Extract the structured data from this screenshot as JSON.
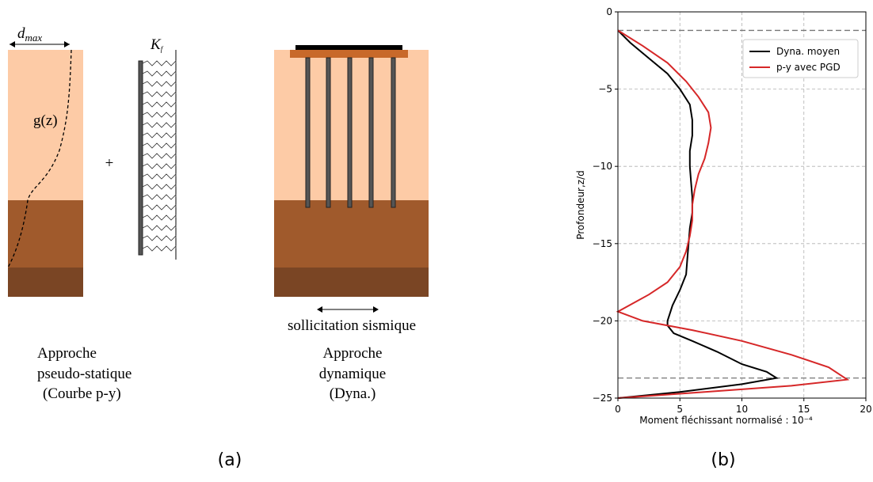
{
  "diagram": {
    "dmax": [
      "d",
      "max"
    ],
    "gz": "g(z)",
    "plus": "+",
    "kf": [
      "K",
      "f"
    ],
    "excitation": "sollicitation sismique",
    "left_caption": [
      "Approche",
      "pseudo-statique",
      "(Courbe p-y)"
    ],
    "right_caption": [
      "Approche",
      "dynamique",
      "(Dyna.)"
    ],
    "label": "(a)"
  },
  "chart_data": {
    "type": "line",
    "label": "(b)",
    "xlabel": "Moment fléchissant normalisé : 10⁻⁴",
    "ylabel": "Profondeur,z/d",
    "xlim": [
      0,
      20
    ],
    "ylim": [
      -25,
      0
    ],
    "xticks": [
      0,
      5,
      10,
      15,
      20
    ],
    "yticks": [
      0,
      {
        "value": -5,
        "label": "−5"
      },
      {
        "value": -10,
        "label": "−10"
      },
      {
        "value": -15,
        "label": "−15"
      },
      {
        "value": -20,
        "label": "−20"
      },
      {
        "value": -25,
        "label": "−25"
      }
    ],
    "grid": true,
    "legend": "upper right",
    "hlines": [
      -1.2,
      -23.7
    ],
    "series": [
      {
        "name": "Dyna. moyen",
        "color": "#000000",
        "x": [
          0,
          1,
          2.5,
          4,
          5,
          5.8,
          6,
          6,
          5.8,
          5.8,
          5.9,
          6,
          6,
          5.8,
          5.7,
          5.6,
          5.5,
          5,
          4.4,
          4,
          4,
          4.5,
          6,
          8,
          10,
          12,
          12.8,
          10,
          5,
          0
        ],
        "y": [
          -1.2,
          -2,
          -3,
          -4,
          -5,
          -6,
          -7,
          -8,
          -9,
          -10,
          -11,
          -12,
          -13,
          -14,
          -15,
          -16,
          -17,
          -18,
          -19,
          -20,
          -20.3,
          -20.8,
          -21.3,
          -22,
          -22.8,
          -23.3,
          -23.7,
          -24.1,
          -24.6,
          -25
        ]
      },
      {
        "name": "p-y avec PGD",
        "color": "#d62728",
        "x": [
          0,
          2,
          4,
          5.5,
          6.5,
          7.3,
          7.5,
          7.3,
          7,
          6.5,
          6.2,
          6,
          6,
          5.8,
          5.5,
          5,
          4,
          2.5,
          0,
          2,
          6,
          10,
          14,
          17,
          18.5,
          14,
          7,
          0
        ],
        "y": [
          -1.2,
          -2.2,
          -3.3,
          -4.5,
          -5.5,
          -6.5,
          -7.5,
          -8.5,
          -9.5,
          -10.5,
          -11.5,
          -12.5,
          -13.5,
          -14.5,
          -15.5,
          -16.5,
          -17.5,
          -18.3,
          -19.4,
          -20,
          -20.6,
          -21.3,
          -22.2,
          -23,
          -23.8,
          -24.2,
          -24.6,
          -25
        ]
      }
    ]
  }
}
